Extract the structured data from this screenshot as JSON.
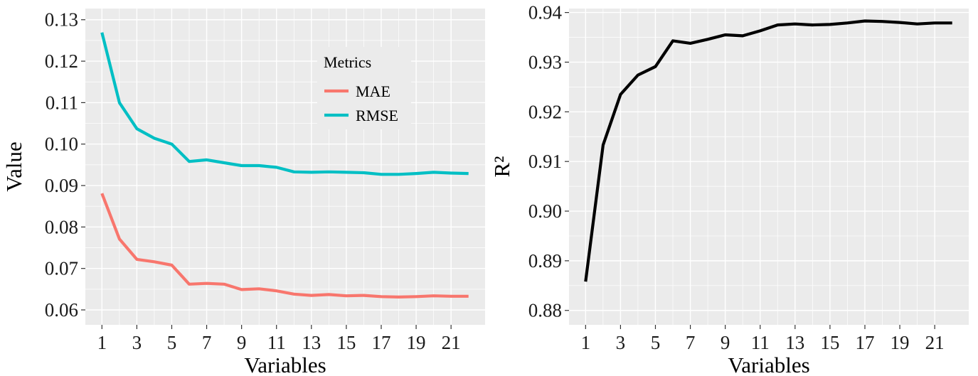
{
  "chart_data": [
    {
      "type": "line",
      "xlabel": "Variables",
      "ylabel": "Value",
      "x": [
        1,
        2,
        3,
        4,
        5,
        6,
        7,
        8,
        9,
        10,
        11,
        12,
        13,
        14,
        15,
        16,
        17,
        18,
        19,
        20,
        21,
        22
      ],
      "xticks": [
        1,
        3,
        5,
        7,
        9,
        11,
        13,
        15,
        17,
        19,
        21
      ],
      "xlim": [
        0.05,
        22.95
      ],
      "yticks": [
        "0.06",
        "0.07",
        "0.08",
        "0.09",
        "0.10",
        "0.11",
        "0.12",
        "0.13"
      ],
      "ylim": [
        0.0564,
        0.1327
      ],
      "grid": true,
      "legend": {
        "title": "Metrics",
        "placement": "inside-top-right"
      },
      "series": [
        {
          "name": "MAE",
          "color": "#f8766d",
          "values": [
            0.0881,
            0.0771,
            0.0722,
            0.0716,
            0.0708,
            0.0662,
            0.0664,
            0.0662,
            0.0649,
            0.0651,
            0.0646,
            0.0638,
            0.0635,
            0.0637,
            0.0634,
            0.0635,
            0.0632,
            0.0631,
            0.0632,
            0.0634,
            0.0633,
            0.0633
          ]
        },
        {
          "name": "RMSE",
          "color": "#00bfc4",
          "values": [
            0.1269,
            0.11,
            0.1037,
            0.1014,
            0.1,
            0.0958,
            0.0962,
            0.0955,
            0.0948,
            0.0948,
            0.0944,
            0.0933,
            0.0932,
            0.0933,
            0.0932,
            0.0931,
            0.0927,
            0.0927,
            0.0929,
            0.0932,
            0.093,
            0.0929
          ]
        }
      ]
    },
    {
      "type": "line",
      "xlabel": "Variables",
      "ylabel": "R²",
      "x": [
        1,
        2,
        3,
        4,
        5,
        6,
        7,
        8,
        9,
        10,
        11,
        12,
        13,
        14,
        15,
        16,
        17,
        18,
        19,
        20,
        21,
        22
      ],
      "xticks": [
        1,
        3,
        5,
        7,
        9,
        11,
        13,
        15,
        17,
        19,
        21
      ],
      "xlim": [
        0.05,
        22.95
      ],
      "yticks": [
        "0.88",
        "0.89",
        "0.90",
        "0.91",
        "0.92",
        "0.93",
        "0.94"
      ],
      "ylim": [
        0.8771,
        0.9408
      ],
      "grid": true,
      "series": [
        {
          "color": "#000000",
          "values": [
            0.8858,
            0.9133,
            0.9235,
            0.9274,
            0.9291,
            0.9343,
            0.9338,
            0.9346,
            0.9355,
            0.9353,
            0.9363,
            0.9375,
            0.9377,
            0.9375,
            0.9376,
            0.9379,
            0.9383,
            0.9382,
            0.938,
            0.9377,
            0.9379,
            0.9379
          ]
        }
      ]
    }
  ]
}
